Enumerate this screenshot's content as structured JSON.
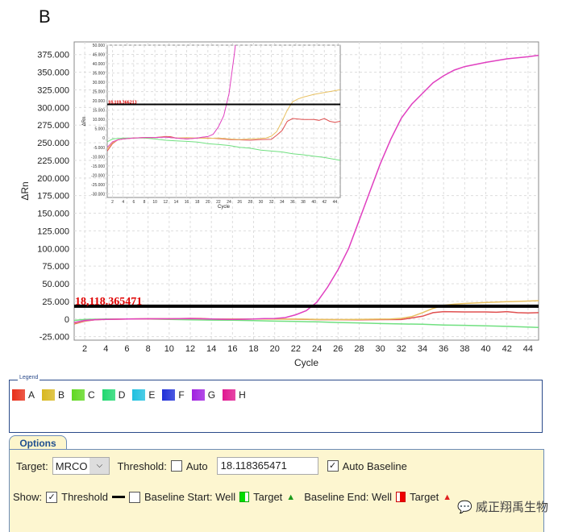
{
  "panel_label": "B",
  "chart_data": [
    {
      "type": "line",
      "title": "",
      "xlabel": "Cycle",
      "ylabel": "ΔRn",
      "xlim": [
        1,
        45
      ],
      "ylim": [
        -30000,
        393000
      ],
      "yticks": [
        -25000,
        0,
        25000,
        50000,
        75000,
        100000,
        125000,
        150000,
        175000,
        200000,
        225000,
        250000,
        275000,
        300000,
        325000,
        350000,
        375000
      ],
      "ytick_labels": [
        "-25.000",
        "0",
        "25.000",
        "50.000",
        "75.000",
        "100.000",
        "125.000",
        "150.000",
        "175.000",
        "200.000",
        "225.000",
        "250.000",
        "275.000",
        "300.000",
        "325.000",
        "350.000",
        "375.000"
      ],
      "xticks": [
        2,
        4,
        6,
        8,
        10,
        12,
        14,
        16,
        18,
        20,
        22,
        24,
        26,
        28,
        30,
        32,
        34,
        36,
        38,
        40,
        42,
        44
      ],
      "threshold": 18118.365471,
      "threshold_label": "18,118.365471",
      "grid": true
    },
    {
      "type": "line",
      "title": "",
      "xlabel": "Cycle",
      "ylabel": "ΔRn",
      "xlim": [
        1,
        45
      ],
      "ylim": [
        -32000,
        50000
      ],
      "yticks": [
        -30000,
        -25000,
        -20000,
        -15000,
        -10000,
        -5000,
        0,
        5000,
        10000,
        15000,
        20000,
        25000,
        30000,
        35000,
        40000,
        45000,
        50000
      ],
      "ytick_labels": [
        "-30.000",
        "-25.000",
        "-20.000",
        "-15.000",
        "-10.000",
        "-5.000",
        "0",
        "5.000",
        "10.000",
        "15.000",
        "20.000",
        "25.000",
        "30.000",
        "35.000",
        "40.000",
        "45.000",
        "50.000"
      ],
      "xticks": [
        2,
        4,
        6,
        8,
        10,
        12,
        14,
        16,
        18,
        20,
        22,
        24,
        26,
        28,
        30,
        32,
        34,
        36,
        38,
        40,
        42,
        44
      ],
      "threshold": 18118.366213,
      "threshold_label": "18,118.366213",
      "grid": true
    }
  ],
  "series": [
    {
      "name": "H",
      "color": "#e040c0",
      "x": [
        1,
        2,
        3,
        4,
        6,
        8,
        10,
        12,
        14,
        16,
        18,
        19,
        20,
        21,
        22,
        23,
        24,
        25,
        26,
        27,
        28,
        29,
        30,
        31,
        32,
        33,
        34,
        35,
        36,
        37,
        38,
        40,
        42,
        44,
        45
      ],
      "y": [
        -5000,
        -2000,
        -1000,
        -500,
        0,
        300,
        300,
        500,
        0,
        -500,
        0,
        500,
        800,
        2000,
        6000,
        12000,
        24000,
        45000,
        70000,
        100000,
        140000,
        180000,
        220000,
        255000,
        285000,
        305000,
        320000,
        335000,
        345000,
        353000,
        358000,
        364000,
        369000,
        372000,
        374000
      ]
    },
    {
      "name": "B",
      "color": "#e8c060",
      "x": [
        1,
        2,
        3,
        4,
        6,
        8,
        10,
        12,
        14,
        16,
        18,
        20,
        22,
        24,
        26,
        28,
        30,
        31,
        32,
        33,
        34,
        35,
        36,
        37,
        38,
        40,
        42,
        44,
        45
      ],
      "y": [
        -6000,
        -2500,
        -1000,
        -500,
        0,
        300,
        300,
        600,
        0,
        200,
        0,
        -200,
        0,
        -500,
        -800,
        -500,
        -200,
        0,
        1000,
        3500,
        9000,
        15000,
        19500,
        21000,
        22000,
        23500,
        24500,
        25500,
        26000
      ]
    },
    {
      "name": "A",
      "color": "#e05050",
      "x": [
        1,
        2,
        3,
        4,
        6,
        8,
        10,
        12,
        13,
        14,
        16,
        18,
        20,
        22,
        24,
        26,
        28,
        29,
        30,
        32,
        33,
        34,
        35,
        36,
        38,
        40,
        41,
        42,
        43,
        44,
        45
      ],
      "y": [
        -7000,
        -3000,
        -1000,
        -500,
        0,
        300,
        300,
        900,
        700,
        0,
        -500,
        0,
        0,
        -300,
        -800,
        -1000,
        -1200,
        -1000,
        -800,
        -700,
        1500,
        4000,
        9000,
        10500,
        10000,
        10000,
        9500,
        10500,
        9000,
        8500,
        9000
      ]
    },
    {
      "name": "D",
      "color": "#70e080",
      "x": [
        1,
        2,
        4,
        6,
        8,
        10,
        12,
        14,
        16,
        18,
        20,
        22,
        24,
        26,
        28,
        30,
        32,
        34,
        36,
        38,
        40,
        42,
        44,
        45
      ],
      "y": [
        -2000,
        -500,
        0,
        0,
        0,
        -500,
        -1200,
        -1500,
        -1800,
        -2200,
        -3000,
        -3500,
        -4000,
        -5000,
        -5500,
        -6500,
        -7000,
        -7500,
        -8500,
        -9000,
        -9800,
        -10500,
        -11500,
        -12000
      ]
    }
  ],
  "legend": {
    "title": "Legend",
    "items": [
      {
        "label": "A",
        "color": "#e8301a"
      },
      {
        "label": "B",
        "color": "#d8b820"
      },
      {
        "label": "C",
        "color": "#60d820"
      },
      {
        "label": "D",
        "color": "#20d870"
      },
      {
        "label": "E",
        "color": "#20c0e0"
      },
      {
        "label": "F",
        "color": "#2030d8"
      },
      {
        "label": "G",
        "color": "#a020e0"
      },
      {
        "label": "H",
        "color": "#e01890"
      }
    ]
  },
  "options": {
    "tab": "Options",
    "target_label": "Target:",
    "target_value": "MRCO",
    "threshold_label": "Threshold:",
    "auto_label": "Auto",
    "threshold_value": "18.118365471",
    "auto_baseline_label": "Auto Baseline",
    "show_label": "Show:",
    "show_threshold_label": "Threshold",
    "baseline_start_label": "Baseline Start: Well",
    "target1_label": "Target",
    "baseline_end_label": "Baseline End: Well",
    "target2_label": "Target"
  },
  "watermark": "威正翔禹生物"
}
